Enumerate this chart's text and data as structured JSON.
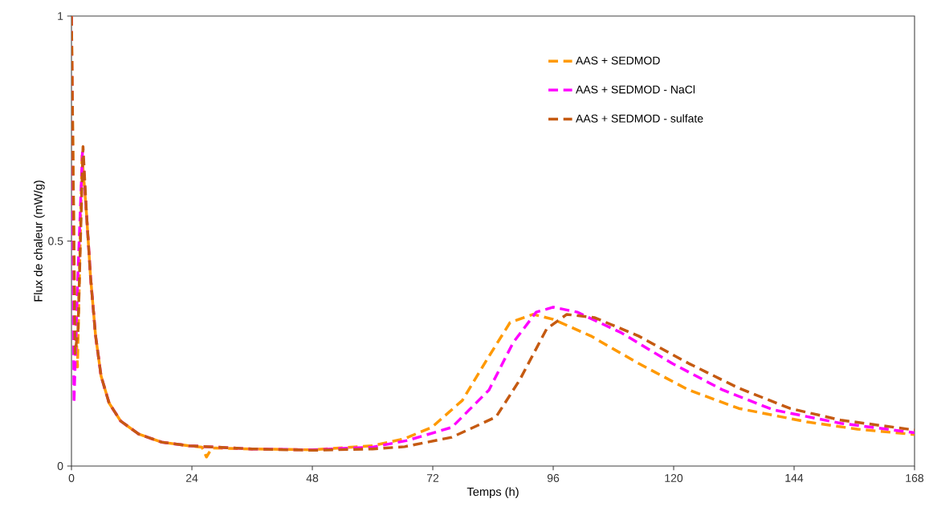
{
  "chart_data": {
    "type": "line",
    "xlabel": "Temps (h)",
    "ylabel": "Flux de chaleur (mW/g)",
    "xlim": [
      0,
      168
    ],
    "ylim": [
      0,
      1
    ],
    "xticks": [
      0,
      24,
      48,
      72,
      96,
      120,
      144,
      168
    ],
    "yticks": [
      0,
      0.5,
      1
    ],
    "grid": false,
    "legend": "top right",
    "line_style": "dashed",
    "marker": "none",
    "series": [
      {
        "name": "AAS + SEDMOD",
        "color": "#ff9900",
        "x": [
          0,
          0.6,
          1.2,
          2.1,
          3.0,
          3.8,
          4.8,
          5.9,
          7.5,
          9.8,
          13.4,
          18,
          23.4,
          26,
          26.9,
          28,
          36,
          48,
          60,
          66.4,
          71.8,
          77.9,
          83.2,
          87.4,
          92,
          96,
          103.5,
          113,
          123,
          133,
          146.6,
          156.6,
          168
        ],
        "values": [
          1,
          0.4,
          0.22,
          0.69,
          0.56,
          0.42,
          0.29,
          0.2,
          0.14,
          0.1,
          0.071,
          0.053,
          0.045,
          0.042,
          0.02,
          0.04,
          0.038,
          0.036,
          0.045,
          0.061,
          0.086,
          0.146,
          0.244,
          0.319,
          0.337,
          0.326,
          0.289,
          0.228,
          0.169,
          0.128,
          0.098,
          0.082,
          0.07
        ]
      },
      {
        "name": "AAS + SEDMOD - NaCl",
        "color": "#ff00ff",
        "x": [
          0,
          0.5,
          1.2,
          2.2,
          3.0,
          3.8,
          4.8,
          5.9,
          7.5,
          9.8,
          13.4,
          18,
          23.4,
          36,
          48,
          60,
          67,
          75.8,
          83.2,
          88,
          92.6,
          96,
          100.8,
          109.6,
          119.7,
          129.8,
          139.8,
          153.3,
          168
        ],
        "values": [
          1,
          0.14,
          0.4,
          0.7,
          0.56,
          0.42,
          0.29,
          0.2,
          0.14,
          0.1,
          0.071,
          0.053,
          0.045,
          0.038,
          0.036,
          0.042,
          0.057,
          0.086,
          0.169,
          0.274,
          0.342,
          0.353,
          0.342,
          0.296,
          0.228,
          0.169,
          0.125,
          0.095,
          0.074
        ]
      },
      {
        "name": "AAS + SEDMOD - sulfate",
        "color": "#c55a11",
        "x": [
          0,
          0.7,
          1.3,
          2.3,
          3.0,
          3.8,
          4.8,
          5.9,
          7.5,
          9.8,
          13.4,
          18,
          23.4,
          36,
          48,
          60,
          66.4,
          75.8,
          84.6,
          89.3,
          94.7,
          98.7,
          104.2,
          113,
          123,
          133,
          143.2,
          153.3,
          168
        ],
        "values": [
          1,
          0.25,
          0.3,
          0.71,
          0.56,
          0.42,
          0.29,
          0.2,
          0.14,
          0.1,
          0.071,
          0.053,
          0.045,
          0.038,
          0.035,
          0.038,
          0.043,
          0.064,
          0.109,
          0.191,
          0.305,
          0.337,
          0.33,
          0.289,
          0.228,
          0.173,
          0.128,
          0.102,
          0.08
        ]
      }
    ]
  }
}
